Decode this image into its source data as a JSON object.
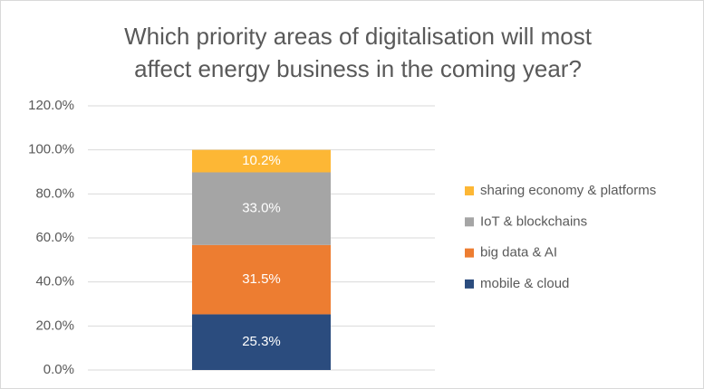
{
  "chart_data": {
    "type": "stacked_bar",
    "title": [
      "Which priority areas of digitalisation will most",
      "affect energy business in the coming year?"
    ],
    "categories": [
      null
    ],
    "series": [
      {
        "name": "mobile & cloud",
        "color": "#2b4c7e",
        "values": [
          25.3
        ],
        "value_labels": [
          "25.3%"
        ]
      },
      {
        "name": "big data & AI",
        "color": "#ed7d31",
        "values": [
          31.5
        ],
        "value_labels": [
          "31.5%"
        ]
      },
      {
        "name": "IoT & blockchains",
        "color": "#a5a5a5",
        "values": [
          33.0
        ],
        "value_labels": [
          "33.0%"
        ]
      },
      {
        "name": "sharing economy & platforms",
        "color": "#fdb735",
        "values": [
          10.2
        ],
        "value_labels": [
          "10.2%"
        ]
      }
    ],
    "ylim": [
      0,
      120
    ],
    "yticks": [
      {
        "value": 0,
        "label": "0.0%"
      },
      {
        "value": 20,
        "label": "20.0%"
      },
      {
        "value": 40,
        "label": "40.0%"
      },
      {
        "value": 60,
        "label": "60.0%"
      },
      {
        "value": 80,
        "label": "80.0%"
      },
      {
        "value": 100,
        "label": "100.0%"
      },
      {
        "value": 120,
        "label": "120.0%"
      }
    ],
    "grid": true,
    "legend": "right"
  }
}
